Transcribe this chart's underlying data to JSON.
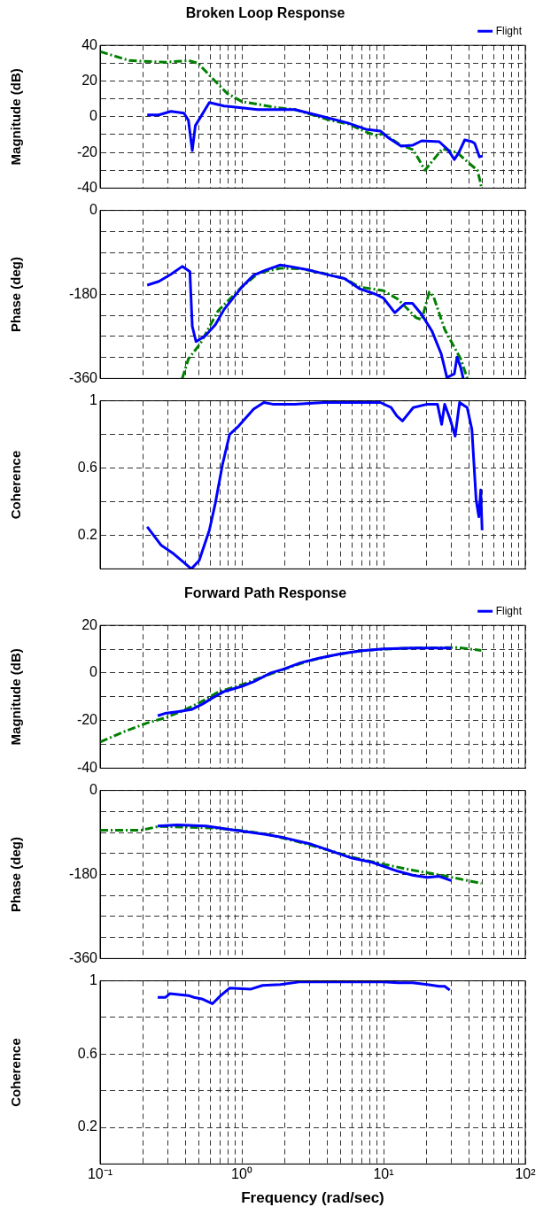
{
  "chart_data": [
    {
      "type": "line",
      "title": "Broken Loop Response",
      "ylabel": "Magnitude (dB)",
      "log": "x",
      "grid": true,
      "legend": "top right",
      "marker": "none",
      "tick_labels": "y",
      "xlim": [
        0.1,
        100
      ],
      "xticks": [
        {
          "value": 0.1,
          "label": null
        },
        {
          "value": 0.2,
          "label": null
        },
        {
          "value": 0.3,
          "label": null
        },
        {
          "value": 0.4,
          "label": null
        },
        {
          "value": 0.5,
          "label": null
        },
        {
          "value": 0.6,
          "label": null
        },
        {
          "value": 0.7,
          "label": null
        },
        {
          "value": 0.8,
          "label": null
        },
        {
          "value": 0.9,
          "label": null
        },
        {
          "value": 1,
          "label": null
        },
        {
          "value": 2,
          "label": null
        },
        {
          "value": 3,
          "label": null
        },
        {
          "value": 4,
          "label": null
        },
        {
          "value": 5,
          "label": null
        },
        {
          "value": 6,
          "label": null
        },
        {
          "value": 7,
          "label": null
        },
        {
          "value": 8,
          "label": null
        },
        {
          "value": 9,
          "label": null
        },
        {
          "value": 10,
          "label": null
        },
        {
          "value": 20,
          "label": null
        },
        {
          "value": 30,
          "label": null
        },
        {
          "value": 40,
          "label": null
        },
        {
          "value": 50,
          "label": null
        },
        {
          "value": 60,
          "label": null
        },
        {
          "value": 70,
          "label": null
        },
        {
          "value": 80,
          "label": null
        },
        {
          "value": 90,
          "label": null
        },
        {
          "value": 100,
          "label": null
        }
      ],
      "ylim": [
        -40,
        40
      ],
      "yticks": [
        -40,
        {
          "value": -30,
          "label": null
        },
        -20,
        {
          "value": -10,
          "label": null
        },
        0,
        {
          "value": 10,
          "label": null
        },
        20,
        {
          "value": 30,
          "label": null
        },
        40
      ],
      "series": [
        {
          "name": "Flight",
          "color": "#0000ff",
          "line_style": "solid",
          "x": [
            0.215,
            0.26,
            0.316,
            0.39,
            0.42,
            0.447,
            0.47,
            0.59,
            0.75,
            1.0,
            1.29,
            2.37,
            3.15,
            4.2,
            5.6,
            7.5,
            9.5,
            10.9,
            13.3,
            16,
            18.6,
            24.7,
            28.5,
            31.6,
            34,
            37.4,
            42,
            44,
            47.5,
            50
          ],
          "values": [
            1,
            1,
            3,
            2,
            -2,
            -19,
            -5,
            8,
            6,
            5,
            4,
            4,
            1.5,
            -1,
            -3.5,
            -7,
            -8,
            -12,
            -16.5,
            -16,
            -13.5,
            -14,
            -18.5,
            -24,
            -20,
            -13,
            -14,
            -15,
            -22.5,
            -22
          ]
        },
        {
          "color": "#008000",
          "line_style": "dashed",
          "x": [
            0.1,
            0.16,
            0.29,
            0.42,
            0.49,
            0.62,
            0.79,
            1,
            1.29,
            1.78,
            2.37,
            3.16,
            4.2,
            5.6,
            7.5,
            8.9,
            10,
            13.3,
            16.2,
            19.6,
            21.5,
            26,
            33,
            40,
            46,
            48.5,
            49
          ],
          "values": [
            36.5,
            31.5,
            30.5,
            31.5,
            30,
            21.5,
            13,
            8.5,
            7,
            5,
            4,
            1,
            -2,
            -4,
            -8.5,
            -10.5,
            -9.5,
            -16,
            -18.5,
            -30,
            -26,
            -18,
            -20,
            -26,
            -30,
            -37.5,
            -40
          ]
        }
      ]
    },
    {
      "type": "line",
      "ylabel": "Phase (deg)",
      "log": "x",
      "grid": true,
      "marker": "none",
      "tick_labels": "y",
      "xlim": [
        0.1,
        100
      ],
      "xticks": [
        {
          "value": 0.1,
          "label": null
        },
        {
          "value": 0.2,
          "label": null
        },
        {
          "value": 0.3,
          "label": null
        },
        {
          "value": 0.4,
          "label": null
        },
        {
          "value": 0.5,
          "label": null
        },
        {
          "value": 0.6,
          "label": null
        },
        {
          "value": 0.7,
          "label": null
        },
        {
          "value": 0.8,
          "label": null
        },
        {
          "value": 0.9,
          "label": null
        },
        {
          "value": 1,
          "label": null
        },
        {
          "value": 2,
          "label": null
        },
        {
          "value": 3,
          "label": null
        },
        {
          "value": 4,
          "label": null
        },
        {
          "value": 5,
          "label": null
        },
        {
          "value": 6,
          "label": null
        },
        {
          "value": 7,
          "label": null
        },
        {
          "value": 8,
          "label": null
        },
        {
          "value": 9,
          "label": null
        },
        {
          "value": 10,
          "label": null
        },
        {
          "value": 20,
          "label": null
        },
        {
          "value": 30,
          "label": null
        },
        {
          "value": 40,
          "label": null
        },
        {
          "value": 50,
          "label": null
        },
        {
          "value": 60,
          "label": null
        },
        {
          "value": 70,
          "label": null
        },
        {
          "value": 80,
          "label": null
        },
        {
          "value": 90,
          "label": null
        },
        {
          "value": 100,
          "label": null
        }
      ],
      "ylim": [
        -360,
        0
      ],
      "yticks": [
        -360,
        {
          "value": -315,
          "label": null
        },
        {
          "value": -270,
          "label": null
        },
        {
          "value": -225,
          "label": null
        },
        -180,
        {
          "value": -135,
          "label": null
        },
        {
          "value": -90,
          "label": null
        },
        {
          "value": -45,
          "label": null
        },
        0
      ],
      "series": [
        {
          "color": "#0000ff",
          "line_style": "solid",
          "x": [
            0.215,
            0.26,
            0.316,
            0.38,
            0.43,
            0.447,
            0.475,
            0.55,
            0.65,
            0.75,
            1.0,
            1.21,
            1.47,
            1.87,
            2.18,
            3.0,
            4.2,
            5.3,
            6.8,
            8.7,
            10,
            12,
            14.2,
            16,
            18.6,
            22,
            25.5,
            28,
            31.6,
            33,
            35,
            36.5
          ],
          "values": [
            -160,
            -152,
            -137,
            -120,
            -131,
            -248,
            -281,
            -269,
            -245,
            -212,
            -164,
            -139,
            -128,
            -117,
            -120,
            -128,
            -139,
            -146,
            -168,
            -179,
            -188,
            -219,
            -199,
            -199,
            -223,
            -259,
            -307,
            -358,
            -350,
            -314,
            -336,
            -360
          ]
        },
        {
          "color": "#008000",
          "line_style": "dashed",
          "x": [
            0.38,
            0.42,
            0.51,
            0.68,
            1,
            1.33,
            1.87,
            2.66,
            3.8,
            5.3,
            6.8,
            10,
            12.6,
            17,
            18.6,
            21,
            22.5,
            27,
            35,
            39
          ],
          "values": [
            -360,
            -318,
            -285,
            -215,
            -164,
            -133,
            -124,
            -125,
            -135,
            -146,
            -164,
            -172,
            -190,
            -230,
            -234,
            -175,
            -184,
            -255,
            -318,
            -360
          ]
        }
      ]
    },
    {
      "type": "line",
      "ylabel": "Coherence",
      "log": "x",
      "grid": true,
      "marker": "none",
      "tick_labels": "y",
      "xlim": [
        0.1,
        100
      ],
      "xticks": [
        {
          "value": 0.1,
          "label": null
        },
        {
          "value": 0.2,
          "label": null
        },
        {
          "value": 0.3,
          "label": null
        },
        {
          "value": 0.4,
          "label": null
        },
        {
          "value": 0.5,
          "label": null
        },
        {
          "value": 0.6,
          "label": null
        },
        {
          "value": 0.7,
          "label": null
        },
        {
          "value": 0.8,
          "label": null
        },
        {
          "value": 0.9,
          "label": null
        },
        {
          "value": 1,
          "label": null
        },
        {
          "value": 2,
          "label": null
        },
        {
          "value": 3,
          "label": null
        },
        {
          "value": 4,
          "label": null
        },
        {
          "value": 5,
          "label": null
        },
        {
          "value": 6,
          "label": null
        },
        {
          "value": 7,
          "label": null
        },
        {
          "value": 8,
          "label": null
        },
        {
          "value": 9,
          "label": null
        },
        {
          "value": 10,
          "label": null
        },
        {
          "value": 20,
          "label": null
        },
        {
          "value": 30,
          "label": null
        },
        {
          "value": 40,
          "label": null
        },
        {
          "value": 50,
          "label": null
        },
        {
          "value": 60,
          "label": null
        },
        {
          "value": 70,
          "label": null
        },
        {
          "value": 80,
          "label": null
        },
        {
          "value": 90,
          "label": null
        },
        {
          "value": 100,
          "label": null
        }
      ],
      "ylim": [
        0,
        1
      ],
      "yticks": [
        {
          "value": 0,
          "label": null
        },
        0.2,
        {
          "value": 0.4,
          "label": null
        },
        0.6,
        {
          "value": 0.8,
          "label": null
        },
        1
      ],
      "series": [
        {
          "color": "#0000ff",
          "line_style": "solid",
          "x": [
            0.215,
            0.27,
            0.33,
            0.4,
            0.44,
            0.5,
            0.59,
            0.65,
            0.73,
            0.82,
            0.95,
            1.21,
            1.43,
            1.65,
            2.37,
            3.8,
            6,
            9.5,
            11.3,
            12.4,
            13.6,
            16.2,
            20.4,
            24,
            25.7,
            27,
            29.5,
            32,
            34.4,
            38.9,
            42,
            45,
            47,
            48.5,
            49.6
          ],
          "values": [
            0.25,
            0.14,
            0.09,
            0.03,
            0.0,
            0.05,
            0.23,
            0.39,
            0.62,
            0.8,
            0.85,
            0.95,
            0.99,
            0.98,
            0.98,
            0.99,
            0.99,
            0.99,
            0.96,
            0.91,
            0.88,
            0.96,
            0.98,
            0.98,
            0.86,
            0.98,
            0.89,
            0.79,
            0.99,
            0.96,
            0.83,
            0.41,
            0.31,
            0.47,
            0.23
          ]
        }
      ]
    },
    {
      "type": "line",
      "title": "Forward Path Response",
      "ylabel": "Magnitude (dB)",
      "log": "x",
      "grid": true,
      "legend": "top right",
      "marker": "none",
      "tick_labels": "y",
      "xlim": [
        0.1,
        100
      ],
      "xticks": [
        {
          "value": 0.1,
          "label": null
        },
        {
          "value": 0.2,
          "label": null
        },
        {
          "value": 0.3,
          "label": null
        },
        {
          "value": 0.4,
          "label": null
        },
        {
          "value": 0.5,
          "label": null
        },
        {
          "value": 0.6,
          "label": null
        },
        {
          "value": 0.7,
          "label": null
        },
        {
          "value": 0.8,
          "label": null
        },
        {
          "value": 0.9,
          "label": null
        },
        {
          "value": 1,
          "label": null
        },
        {
          "value": 2,
          "label": null
        },
        {
          "value": 3,
          "label": null
        },
        {
          "value": 4,
          "label": null
        },
        {
          "value": 5,
          "label": null
        },
        {
          "value": 6,
          "label": null
        },
        {
          "value": 7,
          "label": null
        },
        {
          "value": 8,
          "label": null
        },
        {
          "value": 9,
          "label": null
        },
        {
          "value": 10,
          "label": null
        },
        {
          "value": 20,
          "label": null
        },
        {
          "value": 30,
          "label": null
        },
        {
          "value": 40,
          "label": null
        },
        {
          "value": 50,
          "label": null
        },
        {
          "value": 60,
          "label": null
        },
        {
          "value": 70,
          "label": null
        },
        {
          "value": 80,
          "label": null
        },
        {
          "value": 90,
          "label": null
        },
        {
          "value": 100,
          "label": null
        }
      ],
      "ylim": [
        -40,
        20
      ],
      "yticks": [
        -40,
        {
          "value": -30,
          "label": null
        },
        -20,
        {
          "value": -10,
          "label": null
        },
        0,
        {
          "value": 10,
          "label": null
        },
        20
      ],
      "series": [
        {
          "name": "Flight",
          "color": "#0000ff",
          "line_style": "solid",
          "x": [
            0.255,
            0.287,
            0.35,
            0.44,
            0.53,
            0.62,
            0.75,
            1,
            1.21,
            1.6,
            1.97,
            2.6,
            3.5,
            4.9,
            6.8,
            10,
            16,
            26,
            30
          ],
          "values": [
            -18,
            -17,
            -16.3,
            -15.4,
            -13,
            -10.5,
            -7.8,
            -5.6,
            -3.7,
            0,
            1.6,
            4.3,
            6.2,
            8,
            9.3,
            10.1,
            10.5,
            10.5,
            10.5
          ]
        },
        {
          "color": "#008000",
          "line_style": "dashed",
          "x": [
            0.1,
            0.147,
            0.215,
            0.29,
            0.38,
            0.51,
            0.68,
            1,
            1.47,
            1.97,
            2.9,
            4.2,
            6.2,
            9.1,
            16,
            33,
            49
          ],
          "values": [
            -29,
            -24.7,
            -21,
            -18.8,
            -16,
            -12.3,
            -8,
            -4.9,
            -1.2,
            1.5,
            4.9,
            7.2,
            8.9,
            9.9,
            10.5,
            10.7,
            9.5
          ]
        }
      ]
    },
    {
      "type": "line",
      "ylabel": "Phase (deg)",
      "log": "x",
      "grid": true,
      "marker": "none",
      "tick_labels": "y",
      "xlim": [
        0.1,
        100
      ],
      "xticks": [
        {
          "value": 0.1,
          "label": null
        },
        {
          "value": 0.2,
          "label": null
        },
        {
          "value": 0.3,
          "label": null
        },
        {
          "value": 0.4,
          "label": null
        },
        {
          "value": 0.5,
          "label": null
        },
        {
          "value": 0.6,
          "label": null
        },
        {
          "value": 0.7,
          "label": null
        },
        {
          "value": 0.8,
          "label": null
        },
        {
          "value": 0.9,
          "label": null
        },
        {
          "value": 1,
          "label": null
        },
        {
          "value": 2,
          "label": null
        },
        {
          "value": 3,
          "label": null
        },
        {
          "value": 4,
          "label": null
        },
        {
          "value": 5,
          "label": null
        },
        {
          "value": 6,
          "label": null
        },
        {
          "value": 7,
          "label": null
        },
        {
          "value": 8,
          "label": null
        },
        {
          "value": 9,
          "label": null
        },
        {
          "value": 10,
          "label": null
        },
        {
          "value": 20,
          "label": null
        },
        {
          "value": 30,
          "label": null
        },
        {
          "value": 40,
          "label": null
        },
        {
          "value": 50,
          "label": null
        },
        {
          "value": 60,
          "label": null
        },
        {
          "value": 70,
          "label": null
        },
        {
          "value": 80,
          "label": null
        },
        {
          "value": 90,
          "label": null
        },
        {
          "value": 100,
          "label": null
        }
      ],
      "ylim": [
        -360,
        0
      ],
      "yticks": [
        -360,
        {
          "value": -315,
          "label": null
        },
        {
          "value": -270,
          "label": null
        },
        {
          "value": -225,
          "label": null
        },
        -180,
        {
          "value": -135,
          "label": null
        },
        {
          "value": -90,
          "label": null
        },
        {
          "value": -45,
          "label": null
        },
        0
      ],
      "series": [
        {
          "color": "#0000ff",
          "line_style": "solid",
          "x": [
            0.255,
            0.35,
            0.56,
            0.75,
            1,
            1.47,
            1.97,
            3,
            4.2,
            6,
            8.3,
            12.6,
            16.2,
            20.4,
            24.7,
            30
          ],
          "values": [
            -76,
            -74,
            -76,
            -82,
            -87,
            -94,
            -101,
            -114,
            -129,
            -145,
            -154,
            -173,
            -182,
            -186,
            -184,
            -193
          ]
        },
        {
          "color": "#008000",
          "line_style": "dashed",
          "x": [
            0.1,
            0.195,
            0.26,
            0.44,
            0.68,
            1,
            1.47,
            2.37,
            3.8,
            6,
            10,
            16.2,
            26,
            49
          ],
          "values": [
            -85,
            -85,
            -77,
            -79,
            -81,
            -86,
            -93,
            -108,
            -125,
            -143,
            -158,
            -171,
            -182,
            -199
          ]
        }
      ]
    },
    {
      "type": "line",
      "ylabel": "Coherence",
      "xlabel": "Frequency (rad/sec)",
      "log": "x",
      "grid": true,
      "marker": "none",
      "xlim": [
        0.1,
        100
      ],
      "xticks": [
        {
          "value": 0.1,
          "label": "10⁻¹"
        },
        {
          "value": 0.2,
          "label": null
        },
        {
          "value": 0.3,
          "label": null
        },
        {
          "value": 0.4,
          "label": null
        },
        {
          "value": 0.5,
          "label": null
        },
        {
          "value": 0.6,
          "label": null
        },
        {
          "value": 0.7,
          "label": null
        },
        {
          "value": 0.8,
          "label": null
        },
        {
          "value": 0.9,
          "label": null
        },
        {
          "value": 1,
          "label": "10⁰"
        },
        {
          "value": 2,
          "label": null
        },
        {
          "value": 3,
          "label": null
        },
        {
          "value": 4,
          "label": null
        },
        {
          "value": 5,
          "label": null
        },
        {
          "value": 6,
          "label": null
        },
        {
          "value": 7,
          "label": null
        },
        {
          "value": 8,
          "label": null
        },
        {
          "value": 9,
          "label": null
        },
        {
          "value": 10,
          "label": "10¹"
        },
        {
          "value": 20,
          "label": null
        },
        {
          "value": 30,
          "label": null
        },
        {
          "value": 40,
          "label": null
        },
        {
          "value": 50,
          "label": null
        },
        {
          "value": 60,
          "label": null
        },
        {
          "value": 70,
          "label": null
        },
        {
          "value": 80,
          "label": null
        },
        {
          "value": 90,
          "label": null
        },
        {
          "value": 100,
          "label": "10²"
        }
      ],
      "ylim": [
        0,
        1
      ],
      "yticks": [
        {
          "value": 0,
          "label": null
        },
        0.2,
        {
          "value": 0.4,
          "label": null
        },
        0.6,
        {
          "value": 0.8,
          "label": null
        },
        1
      ],
      "series": [
        {
          "color": "#0000ff",
          "line_style": "solid",
          "x": [
            0.255,
            0.29,
            0.31,
            0.42,
            0.46,
            0.53,
            0.62,
            0.71,
            0.82,
            1.16,
            1.4,
            1.87,
            2.6,
            10,
            12.6,
            16,
            20.4,
            24.7,
            27,
            29.3
          ],
          "values": [
            0.91,
            0.91,
            0.93,
            0.92,
            0.91,
            0.9,
            0.875,
            0.92,
            0.96,
            0.955,
            0.975,
            0.98,
            0.995,
            0.995,
            0.99,
            0.99,
            0.98,
            0.97,
            0.97,
            0.95
          ]
        }
      ]
    }
  ]
}
